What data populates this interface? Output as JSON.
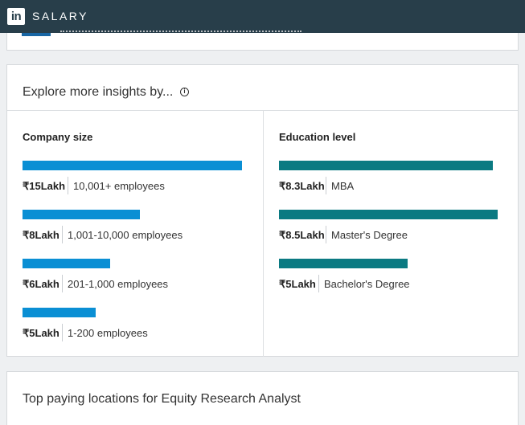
{
  "header": {
    "logo_text": "in",
    "brand": "SALARY",
    "bg_color": "#283e4a"
  },
  "insights": {
    "title": "Explore more insights by...",
    "info_icon": "i",
    "company_size": {
      "title": "Company size",
      "bar_color": "#0a8fd4",
      "items": [
        {
          "amount": "₹15Lakh",
          "label": "10,001+ employees",
          "value": 15
        },
        {
          "amount": "₹8Lakh",
          "label": "1,001-10,000 employees",
          "value": 8
        },
        {
          "amount": "₹6Lakh",
          "label": "201-1,000 employees",
          "value": 6
        },
        {
          "amount": "₹5Lakh",
          "label": "1-200 employees",
          "value": 5
        }
      ]
    },
    "education_level": {
      "title": "Education level",
      "bar_color": "#0b7a82",
      "items": [
        {
          "amount": "₹8.3Lakh",
          "label": "MBA",
          "value": 8.3
        },
        {
          "amount": "₹8.5Lakh",
          "label": "Master's Degree",
          "value": 8.5
        },
        {
          "amount": "₹5Lakh",
          "label": "Bachelor's Degree",
          "value": 5
        }
      ]
    }
  },
  "locations": {
    "title": "Top paying locations for Equity Research Analyst"
  }
}
